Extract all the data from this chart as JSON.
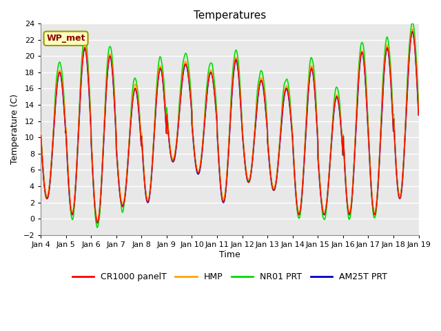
{
  "title": "Temperatures",
  "xlabel": "Time",
  "ylabel": "Temperature (C)",
  "ylim": [
    -2,
    24
  ],
  "x_tick_labels": [
    "Jan 4",
    "Jan 5",
    "Jan 6",
    "Jan 7",
    "Jan 8",
    "Jan 9",
    "Jan 10",
    "Jan 11",
    "Jan 12",
    "Jan 13",
    "Jan 14",
    "Jan 15",
    "Jan 16",
    "Jan 17",
    "Jan 18",
    "Jan 19"
  ],
  "annotation_text": "WP_met",
  "annotation_color": "#8B0000",
  "annotation_bg": "#FFFFC0",
  "annotation_border": "#999900",
  "colors": {
    "CR1000 panelT": "#FF0000",
    "HMP": "#FFA500",
    "NR01 PRT": "#00DD00",
    "AM25T PRT": "#0000CC"
  },
  "plot_bg": "#E8E8E8",
  "grid_color": "#FFFFFF"
}
